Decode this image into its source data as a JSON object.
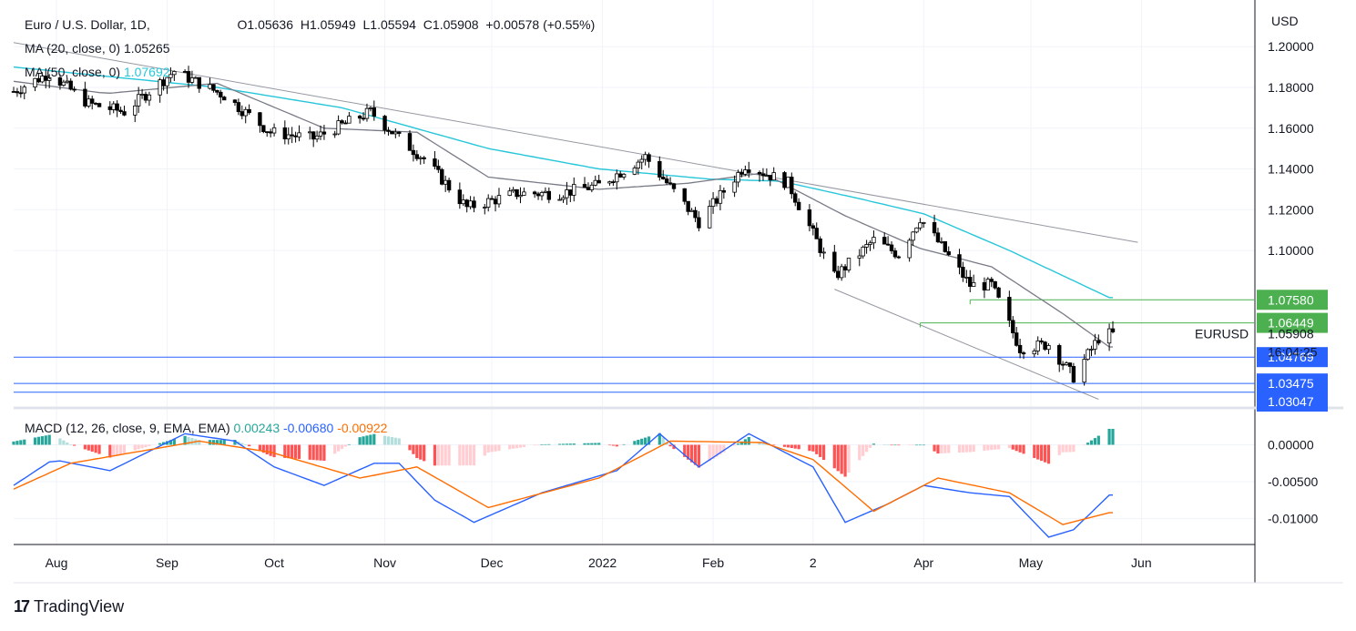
{
  "header": {
    "symbol": "Euro / U.S. Dollar, 1D,",
    "open": "O1.05636",
    "high": "H1.05949",
    "low": "L1.05594",
    "close": "C1.05908",
    "change": "+0.00578 (+0.55%)"
  },
  "indicators": {
    "ma20_label": "MA (20, close, 0)",
    "ma20_value": "1.05265",
    "ma50_label": "MA (50, close, 0)",
    "ma50_value": "1.07692",
    "macd_label": "MACD (12, 26, close, 9, EMA, EMA)",
    "macd_hist": "0.00243",
    "macd_line": "-0.00680",
    "macd_signal": "-0.00922"
  },
  "price_axis": {
    "currency": "USD",
    "ticks": [
      "1.20000",
      "1.18000",
      "1.16000",
      "1.14000",
      "1.12000",
      "1.10000"
    ],
    "symbol_tag": "EURUSD",
    "last_price": "1.05908",
    "countdown": "16:04:25",
    "level_labels": [
      {
        "text": "1.07580",
        "color": "#4caf50",
        "value": 1.0758
      },
      {
        "text": "1.06449",
        "color": "#4caf50",
        "value": 1.06449
      },
      {
        "text": "1.04769",
        "color": "#2962ff",
        "value": 1.04769
      },
      {
        "text": "1.03475",
        "color": "#2962ff",
        "value": 1.03475
      },
      {
        "text": "1.03047",
        "color": "#2962ff",
        "value": 1.03047
      }
    ]
  },
  "macd_axis": {
    "ticks": [
      "0.00000",
      "-0.00500",
      "-0.01000"
    ]
  },
  "time_axis": [
    "Aug",
    "Sep",
    "Oct",
    "Nov",
    "Dec",
    "2022",
    "Feb",
    "2",
    "Apr",
    "May",
    "Jun"
  ],
  "footer": {
    "brand": "TradingView",
    "logo": "17"
  },
  "colors": {
    "bull_candle": "#ffffff",
    "bear_candle": "#000000",
    "ma20": "#787b86",
    "ma50": "#26c6da",
    "trendline": "#9598a1",
    "macd": "#2962ff",
    "signal": "#ff6d00",
    "hist_pos_strong": "#26a69a",
    "hist_pos_weak": "#b2dfdb",
    "hist_neg_strong": "#ff5252",
    "hist_neg_weak": "#ffcdd2"
  },
  "chart_data": {
    "type": "candlestick",
    "title": "Euro / U.S. Dollar, 1D",
    "x_range": [
      "2021-07-20",
      "2022-05-24"
    ],
    "ylim": [
      1.025,
      1.205
    ],
    "macd_ylim": [
      -0.0135,
      0.0045
    ],
    "price_anchors": [
      [
        "2021-07-20",
        1.178
      ],
      [
        "2021-07-30",
        1.187
      ],
      [
        "2021-08-10",
        1.172
      ],
      [
        "2021-08-20",
        1.168
      ],
      [
        "2021-09-03",
        1.188
      ],
      [
        "2021-09-17",
        1.176
      ],
      [
        "2021-09-30",
        1.158
      ],
      [
        "2021-10-12",
        1.155
      ],
      [
        "2021-10-28",
        1.168
      ],
      [
        "2021-11-05",
        1.155
      ],
      [
        "2021-11-12",
        1.145
      ],
      [
        "2021-11-24",
        1.121
      ],
      [
        "2021-12-08",
        1.128
      ],
      [
        "2021-12-20",
        1.128
      ],
      [
        "2021-12-31",
        1.132
      ],
      [
        "2022-01-13",
        1.146
      ],
      [
        "2022-01-28",
        1.114
      ],
      [
        "2022-02-10",
        1.142
      ],
      [
        "2022-02-22",
        1.133
      ],
      [
        "2022-03-07",
        1.087
      ],
      [
        "2022-03-18",
        1.105
      ],
      [
        "2022-03-25",
        1.098
      ],
      [
        "2022-03-31",
        1.116
      ],
      [
        "2022-04-14",
        1.083
      ],
      [
        "2022-04-20",
        1.083
      ],
      [
        "2022-04-28",
        1.052
      ],
      [
        "2022-05-06",
        1.054
      ],
      [
        "2022-05-13",
        1.038
      ],
      [
        "2022-05-20",
        1.057
      ],
      [
        "2022-05-23",
        1.059
      ]
    ],
    "ma20_anchors": [
      [
        "2021-07-20",
        1.183
      ],
      [
        "2021-08-15",
        1.177
      ],
      [
        "2021-09-15",
        1.182
      ],
      [
        "2021-10-15",
        1.16
      ],
      [
        "2021-11-10",
        1.158
      ],
      [
        "2021-11-30",
        1.136
      ],
      [
        "2021-12-31",
        1.13
      ],
      [
        "2022-01-25",
        1.133
      ],
      [
        "2022-02-15",
        1.138
      ],
      [
        "2022-03-10",
        1.117
      ],
      [
        "2022-03-31",
        1.101
      ],
      [
        "2022-04-20",
        1.092
      ],
      [
        "2022-05-10",
        1.069
      ],
      [
        "2022-05-23",
        1.0527
      ]
    ],
    "ma50_anchors": [
      [
        "2021-07-20",
        1.19
      ],
      [
        "2021-09-15",
        1.18
      ],
      [
        "2021-10-20",
        1.17
      ],
      [
        "2021-11-30",
        1.15
      ],
      [
        "2021-12-31",
        1.14
      ],
      [
        "2022-01-31",
        1.135
      ],
      [
        "2022-02-20",
        1.134
      ],
      [
        "2022-03-15",
        1.125
      ],
      [
        "2022-04-01",
        1.118
      ],
      [
        "2022-04-25",
        1.1
      ],
      [
        "2022-05-23",
        1.0769
      ]
    ],
    "trendlines": [
      {
        "from": [
          "2021-07-20",
          1.202
        ],
        "to": [
          "2022-05-31",
          1.104
        ]
      },
      {
        "from": [
          "2022-03-07",
          1.081
        ],
        "to": [
          "2022-05-20",
          1.027
        ]
      }
    ],
    "levels": [
      {
        "value": 1.0758,
        "from": "2022-04-14"
      },
      {
        "value": 1.06449,
        "from": "2022-03-31"
      },
      {
        "value": 1.04769
      },
      {
        "value": 1.03475
      },
      {
        "value": 1.03047
      }
    ],
    "macd_anchors": [
      [
        "2021-07-20",
        -0.0055
      ],
      [
        "2021-07-31",
        -0.002
      ],
      [
        "2021-08-16",
        -0.0035
      ],
      [
        "2021-09-06",
        0.0015
      ],
      [
        "2021-09-20",
        0.0005
      ],
      [
        "2021-10-01",
        -0.003
      ],
      [
        "2021-10-15",
        -0.0055
      ],
      [
        "2021-10-29",
        -0.0025
      ],
      [
        "2021-11-05",
        -0.0025
      ],
      [
        "2021-11-15",
        -0.0075
      ],
      [
        "2021-11-26",
        -0.0105
      ],
      [
        "2021-12-15",
        -0.0065
      ],
      [
        "2022-01-05",
        -0.0035
      ],
      [
        "2022-01-17",
        0.0015
      ],
      [
        "2022-01-28",
        -0.003
      ],
      [
        "2022-02-11",
        0.0015
      ],
      [
        "2022-03-01",
        -0.003
      ],
      [
        "2022-03-10",
        -0.0105
      ],
      [
        "2022-03-22",
        -0.008
      ],
      [
        "2022-04-01",
        -0.0055
      ],
      [
        "2022-04-14",
        -0.0065
      ],
      [
        "2022-04-25",
        -0.007
      ],
      [
        "2022-05-06",
        -0.0125
      ],
      [
        "2022-05-13",
        -0.0115
      ],
      [
        "2022-05-23",
        -0.0068
      ]
    ],
    "signal_anchors": [
      [
        "2021-07-20",
        -0.006
      ],
      [
        "2021-08-05",
        -0.0025
      ],
      [
        "2021-09-10",
        0.0005
      ],
      [
        "2021-09-30",
        -0.001
      ],
      [
        "2021-10-25",
        -0.0045
      ],
      [
        "2021-11-10",
        -0.003
      ],
      [
        "2021-11-30",
        -0.0085
      ],
      [
        "2021-12-31",
        -0.0045
      ],
      [
        "2022-01-20",
        0.0005
      ],
      [
        "2022-02-15",
        0.0003
      ],
      [
        "2022-03-01",
        -0.002
      ],
      [
        "2022-03-18",
        -0.009
      ],
      [
        "2022-04-05",
        -0.0045
      ],
      [
        "2022-04-25",
        -0.0065
      ],
      [
        "2022-05-10",
        -0.0108
      ],
      [
        "2022-05-23",
        -0.0092
      ]
    ]
  }
}
